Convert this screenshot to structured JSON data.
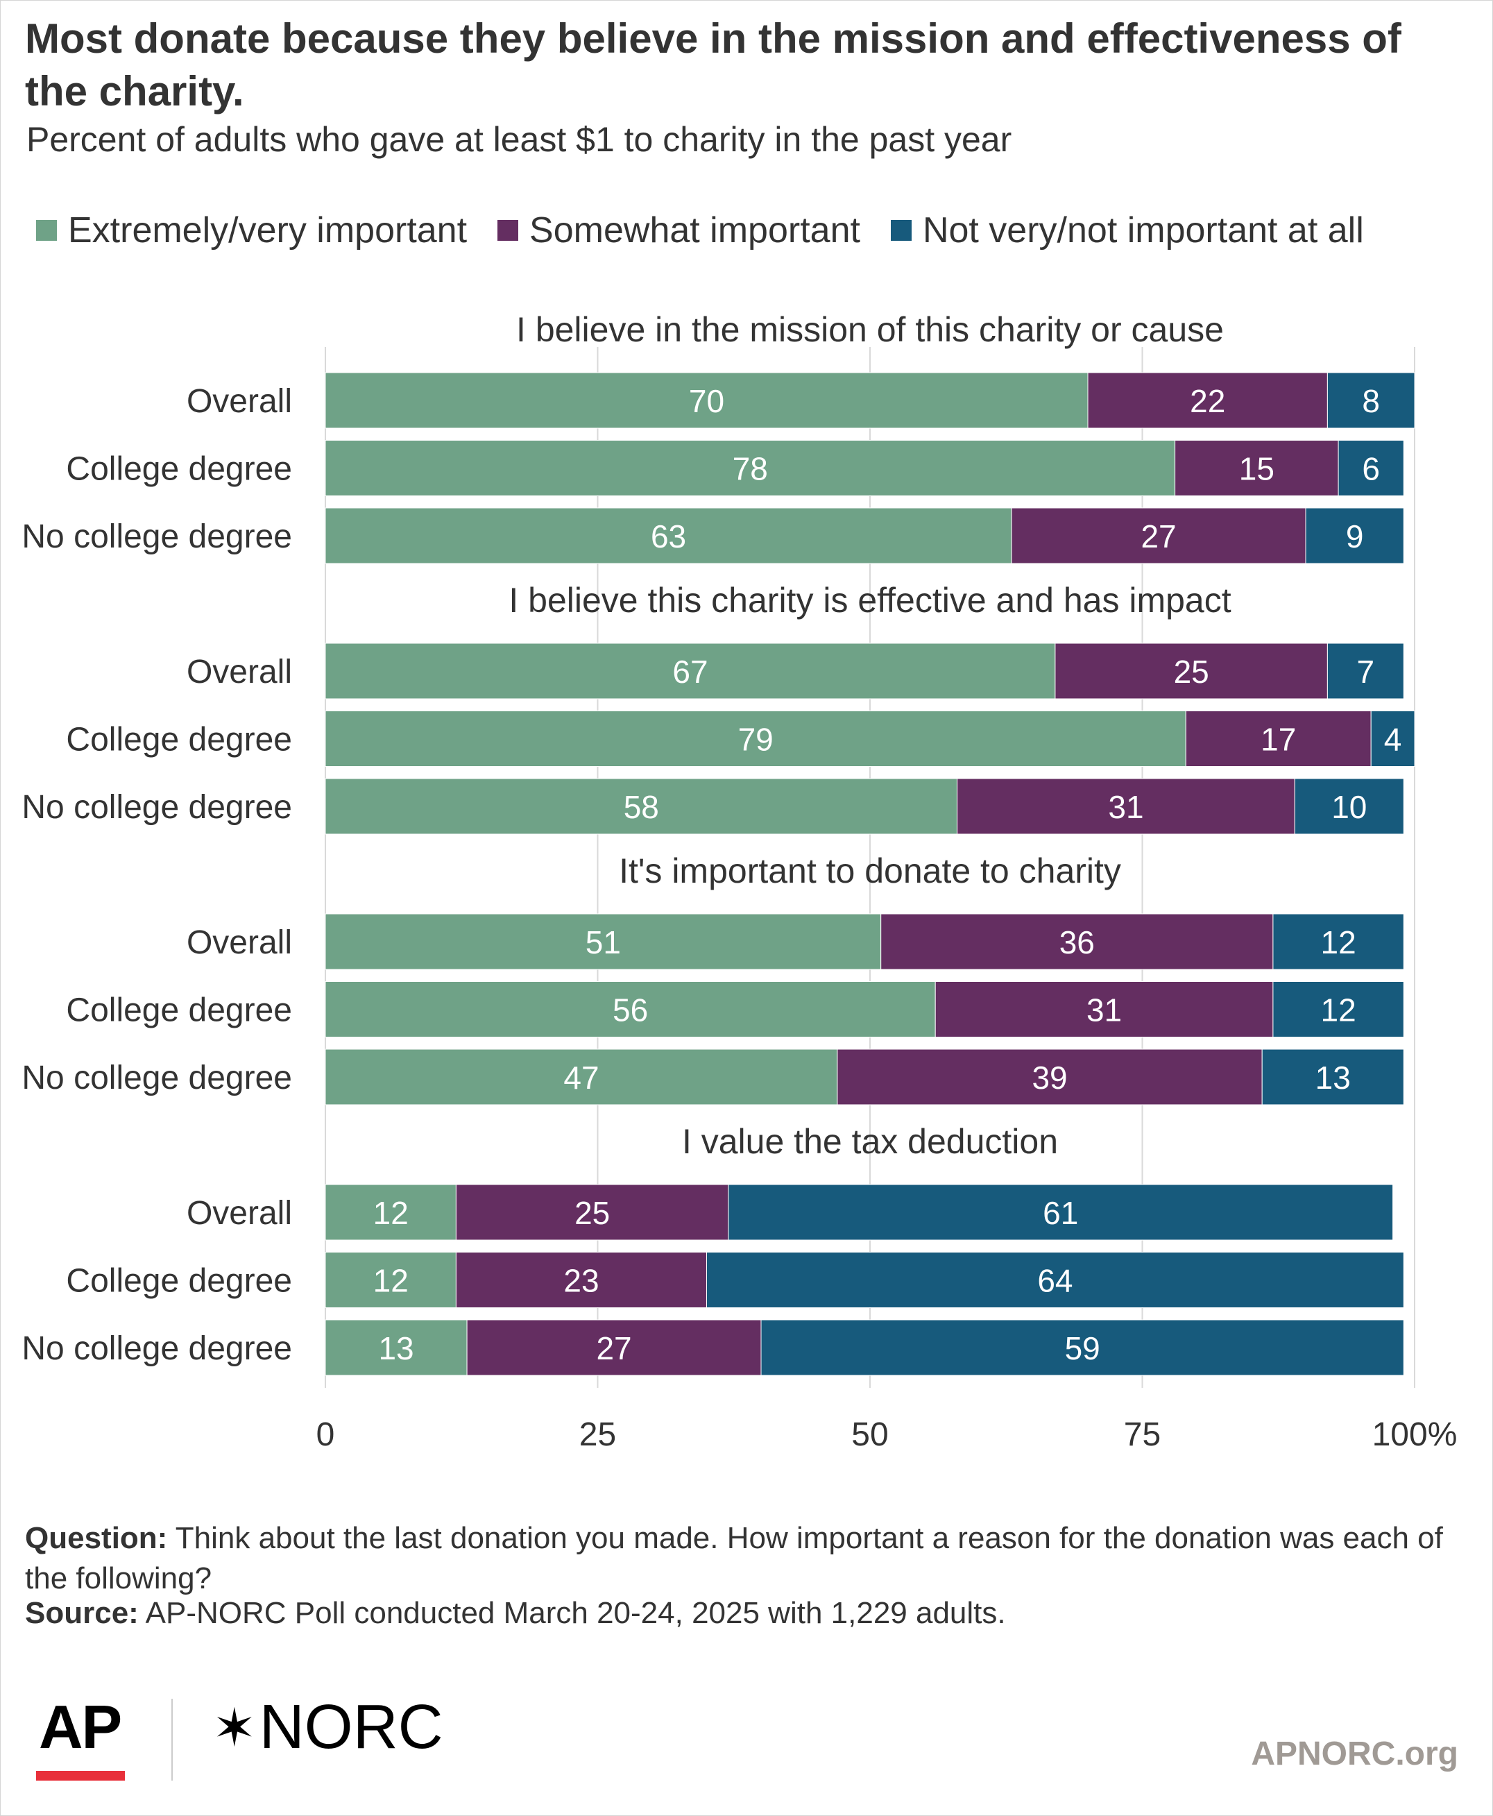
{
  "title": "Most donate because they believe in the mission and effectiveness of the charity.",
  "subtitle": "Percent of adults who gave at least $1 to charity in the past year",
  "legend": [
    {
      "label": "Extremely/very important",
      "color": "#6fa287"
    },
    {
      "label": "Somewhat important",
      "color": "#642e61"
    },
    {
      "label": "Not very/not important at all",
      "color": "#175a7c"
    }
  ],
  "chart_data": {
    "type": "bar",
    "orientation": "horizontal",
    "stacked": true,
    "xlim": [
      0,
      100
    ],
    "x_ticks": [
      "0",
      "25",
      "50",
      "75",
      "100%"
    ],
    "grid": true,
    "legend_position": "top-left",
    "series": [
      {
        "name": "Extremely/very important",
        "color": "#6fa287"
      },
      {
        "name": "Somewhat important",
        "color": "#642e61"
      },
      {
        "name": "Not very/not important at all",
        "color": "#175a7c"
      }
    ],
    "panels": [
      {
        "title": "I believe in the mission of this charity or cause",
        "categories": [
          "Overall",
          "College degree",
          "No college degree"
        ],
        "values": [
          [
            70,
            22,
            8
          ],
          [
            78,
            15,
            6
          ],
          [
            63,
            27,
            9
          ]
        ]
      },
      {
        "title": "I believe this charity is effective and has impact",
        "categories": [
          "Overall",
          "College degree",
          "No college degree"
        ],
        "values": [
          [
            67,
            25,
            7
          ],
          [
            79,
            17,
            4
          ],
          [
            58,
            31,
            10
          ]
        ]
      },
      {
        "title": "It's important to donate to charity",
        "categories": [
          "Overall",
          "College degree",
          "No college degree"
        ],
        "values": [
          [
            51,
            36,
            12
          ],
          [
            56,
            31,
            12
          ],
          [
            47,
            39,
            13
          ]
        ]
      },
      {
        "title": "I value the tax deduction",
        "categories": [
          "Overall",
          "College degree",
          "No college degree"
        ],
        "values": [
          [
            12,
            25,
            61
          ],
          [
            12,
            23,
            64
          ],
          [
            13,
            27,
            59
          ]
        ]
      }
    ]
  },
  "notes": {
    "question_label": "Question:",
    "question_text": " Think about the last donation you made. How important a reason for the donation was each of the following?",
    "source_label": "Source:",
    "source_text": " AP-NORC Poll conducted March 20-24, 2025 with 1,229 adults."
  },
  "logos": {
    "ap": "AP",
    "norc_star": "✶",
    "norc": "NORC",
    "url": "APNORC.org"
  }
}
